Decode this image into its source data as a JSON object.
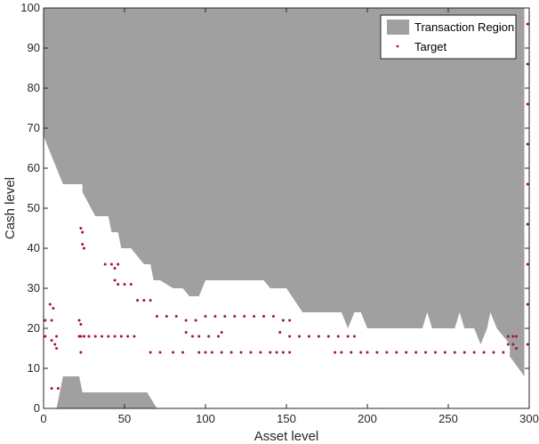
{
  "chart_data": {
    "type": "scatter",
    "title": "",
    "xlabel": "Asset level",
    "ylabel": "Cash level",
    "xlim": [
      0,
      300
    ],
    "ylim": [
      0,
      100
    ],
    "xticks": [
      "0",
      "50",
      "100",
      "150",
      "200",
      "250",
      "300"
    ],
    "yticks": [
      "0",
      "10",
      "20",
      "30",
      "40",
      "50",
      "60",
      "70",
      "80",
      "90",
      "100"
    ],
    "grid": false,
    "legend_position": "top-right",
    "colors": {
      "region": "#a0a0a0",
      "target": "#a3162f",
      "axis": "#262626"
    },
    "series": [
      {
        "name": "Transaction Region",
        "kind": "area",
        "upper_region": [
          [
            0,
            100
          ],
          [
            0,
            68
          ],
          [
            12,
            56
          ],
          [
            24,
            56
          ],
          [
            24,
            54
          ],
          [
            32,
            48
          ],
          [
            40,
            48
          ],
          [
            42,
            44
          ],
          [
            46,
            44
          ],
          [
            48,
            40
          ],
          [
            54,
            40
          ],
          [
            62,
            36
          ],
          [
            66,
            36
          ],
          [
            68,
            32
          ],
          [
            72,
            32
          ],
          [
            80,
            30
          ],
          [
            86,
            30
          ],
          [
            90,
            28
          ],
          [
            96,
            28
          ],
          [
            100,
            32
          ],
          [
            136,
            32
          ],
          [
            140,
            30
          ],
          [
            150,
            30
          ],
          [
            160,
            24
          ],
          [
            184,
            24
          ],
          [
            188,
            20
          ],
          [
            192,
            24
          ],
          [
            196,
            24
          ],
          [
            200,
            20
          ],
          [
            234,
            20
          ],
          [
            237,
            24
          ],
          [
            240,
            20
          ],
          [
            254,
            20
          ],
          [
            257,
            24
          ],
          [
            260,
            20
          ],
          [
            266,
            20
          ],
          [
            270,
            16
          ],
          [
            274,
            20
          ],
          [
            276,
            24
          ],
          [
            280,
            20
          ],
          [
            288,
            16
          ],
          [
            288,
            13
          ],
          [
            297,
            8
          ],
          [
            297,
            100
          ]
        ],
        "lower_region": [
          [
            8,
            0
          ],
          [
            12,
            8
          ],
          [
            22,
            8
          ],
          [
            24,
            4
          ],
          [
            64,
            4
          ],
          [
            70,
            0
          ]
        ]
      },
      {
        "name": "Target",
        "kind": "scatter",
        "points": [
          [
            1,
            22
          ],
          [
            1,
            18
          ],
          [
            5,
            22
          ],
          [
            5,
            17
          ],
          [
            4,
            26
          ],
          [
            6,
            25
          ],
          [
            8,
            18
          ],
          [
            7,
            16
          ],
          [
            8,
            15
          ],
          [
            5,
            5
          ],
          [
            9,
            5
          ],
          [
            22,
            22
          ],
          [
            22,
            18
          ],
          [
            23,
            14
          ],
          [
            23,
            18
          ],
          [
            23,
            21
          ],
          [
            23,
            45
          ],
          [
            24,
            44
          ],
          [
            24,
            41
          ],
          [
            25,
            40
          ],
          [
            25,
            18
          ],
          [
            28,
            18
          ],
          [
            32,
            18
          ],
          [
            36,
            18
          ],
          [
            40,
            18
          ],
          [
            44,
            18
          ],
          [
            48,
            18
          ],
          [
            52,
            18
          ],
          [
            56,
            18
          ],
          [
            38,
            36
          ],
          [
            42,
            36
          ],
          [
            44,
            35
          ],
          [
            46,
            36
          ],
          [
            44,
            32
          ],
          [
            46,
            31
          ],
          [
            50,
            31
          ],
          [
            54,
            31
          ],
          [
            58,
            27
          ],
          [
            62,
            27
          ],
          [
            66,
            27
          ],
          [
            66,
            14
          ],
          [
            72,
            14
          ],
          [
            80,
            14
          ],
          [
            86,
            14
          ],
          [
            96,
            14
          ],
          [
            100,
            14
          ],
          [
            104,
            14
          ],
          [
            110,
            14
          ],
          [
            116,
            14
          ],
          [
            122,
            14
          ],
          [
            128,
            14
          ],
          [
            134,
            14
          ],
          [
            140,
            14
          ],
          [
            144,
            14
          ],
          [
            148,
            14
          ],
          [
            152,
            14
          ],
          [
            70,
            23
          ],
          [
            76,
            23
          ],
          [
            82,
            23
          ],
          [
            88,
            22
          ],
          [
            94,
            22
          ],
          [
            100,
            23
          ],
          [
            106,
            23
          ],
          [
            112,
            23
          ],
          [
            118,
            23
          ],
          [
            124,
            23
          ],
          [
            130,
            23
          ],
          [
            136,
            23
          ],
          [
            142,
            23
          ],
          [
            148,
            22
          ],
          [
            152,
            22
          ],
          [
            88,
            19
          ],
          [
            92,
            18
          ],
          [
            96,
            18
          ],
          [
            102,
            18
          ],
          [
            108,
            18
          ],
          [
            110,
            19
          ],
          [
            146,
            19
          ],
          [
            152,
            18
          ],
          [
            158,
            18
          ],
          [
            164,
            18
          ],
          [
            170,
            18
          ],
          [
            176,
            18
          ],
          [
            182,
            18
          ],
          [
            188,
            18
          ],
          [
            192,
            18
          ],
          [
            180,
            14
          ],
          [
            184,
            14
          ],
          [
            190,
            14
          ],
          [
            196,
            14
          ],
          [
            200,
            14
          ],
          [
            206,
            14
          ],
          [
            212,
            14
          ],
          [
            218,
            14
          ],
          [
            224,
            14
          ],
          [
            230,
            14
          ],
          [
            236,
            14
          ],
          [
            242,
            14
          ],
          [
            248,
            14
          ],
          [
            254,
            14
          ],
          [
            260,
            14
          ],
          [
            266,
            14
          ],
          [
            272,
            14
          ],
          [
            278,
            14
          ],
          [
            284,
            14
          ],
          [
            287,
            18
          ],
          [
            287,
            16
          ],
          [
            290,
            18
          ],
          [
            290,
            16
          ],
          [
            292,
            18
          ],
          [
            292,
            15
          ],
          [
            299,
            96
          ],
          [
            299,
            86
          ],
          [
            299,
            76
          ],
          [
            299,
            66
          ],
          [
            299,
            56
          ],
          [
            299,
            46
          ],
          [
            299,
            36
          ],
          [
            299,
            26
          ],
          [
            299,
            16
          ]
        ]
      }
    ]
  }
}
